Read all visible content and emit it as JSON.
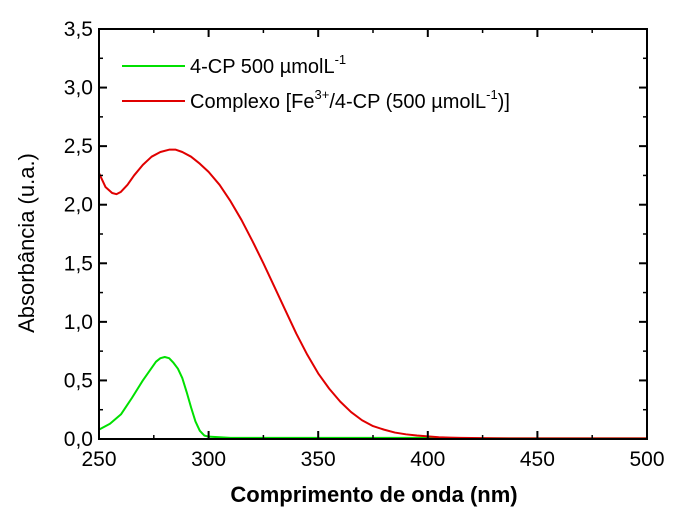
{
  "chart_data": {
    "type": "line",
    "title": "",
    "xlabel": "Comprimento de onda (nm)",
    "ylabel": "Absorbância (u.a.)",
    "xlim": [
      250,
      500
    ],
    "ylim": [
      0,
      3.5
    ],
    "x_ticks": [
      250,
      300,
      350,
      400,
      450,
      500
    ],
    "x_tick_labels": [
      "250",
      "300",
      "350",
      "400",
      "450",
      "500"
    ],
    "y_ticks": [
      0,
      0.5,
      1,
      1.5,
      2,
      2.5,
      3,
      3.5
    ],
    "y_tick_labels": [
      "0,0",
      "0,5",
      "1,0",
      "1,5",
      "2,0",
      "2,5",
      "3,0",
      "3,5"
    ],
    "grid": false,
    "legend_position": "top-left",
    "series": [
      {
        "name": "4-CP 500 µmolL-1",
        "legend_parts": {
          "main": "4-CP 500 µmolL",
          "sup": "-1",
          "tail": ""
        },
        "color": "#00e000",
        "x": [
          250,
          255,
          260,
          265,
          270,
          273,
          276,
          278,
          280,
          282,
          284,
          286,
          288,
          290,
          292,
          294,
          296,
          298,
          300,
          305,
          310,
          320,
          340,
          360,
          380,
          400,
          420,
          450,
          500
        ],
        "y": [
          0.08,
          0.13,
          0.21,
          0.35,
          0.5,
          0.58,
          0.66,
          0.69,
          0.7,
          0.69,
          0.65,
          0.6,
          0.52,
          0.4,
          0.27,
          0.15,
          0.07,
          0.03,
          0.02,
          0.015,
          0.01,
          0.01,
          0.01,
          0.01,
          0.01,
          0.01,
          0.005,
          0.005,
          0.005
        ]
      },
      {
        "name": "Complexo [Fe3+/4-CP (500 µmolL-1)]",
        "legend_parts": {
          "main": "Complexo [Fe",
          "sup": "3+",
          "mid": "/4-CP (500 µmolL",
          "sup2": "-1",
          "tail": ")]"
        },
        "color": "#e00000",
        "x": [
          250,
          253,
          256,
          258,
          260,
          263,
          266,
          270,
          274,
          278,
          282,
          285,
          288,
          292,
          296,
          300,
          305,
          310,
          315,
          320,
          325,
          330,
          335,
          340,
          345,
          350,
          355,
          360,
          365,
          370,
          375,
          380,
          385,
          390,
          395,
          400,
          405,
          410,
          415,
          420,
          430,
          440,
          460,
          480,
          500
        ],
        "y": [
          2.27,
          2.15,
          2.1,
          2.09,
          2.11,
          2.17,
          2.25,
          2.34,
          2.41,
          2.45,
          2.47,
          2.47,
          2.45,
          2.41,
          2.35,
          2.28,
          2.17,
          2.03,
          1.87,
          1.69,
          1.5,
          1.3,
          1.1,
          0.9,
          0.72,
          0.56,
          0.43,
          0.32,
          0.23,
          0.16,
          0.11,
          0.08,
          0.055,
          0.04,
          0.03,
          0.022,
          0.015,
          0.012,
          0.01,
          0.008,
          0.006,
          0.005,
          0.005,
          0.005,
          0.005
        ]
      }
    ]
  }
}
